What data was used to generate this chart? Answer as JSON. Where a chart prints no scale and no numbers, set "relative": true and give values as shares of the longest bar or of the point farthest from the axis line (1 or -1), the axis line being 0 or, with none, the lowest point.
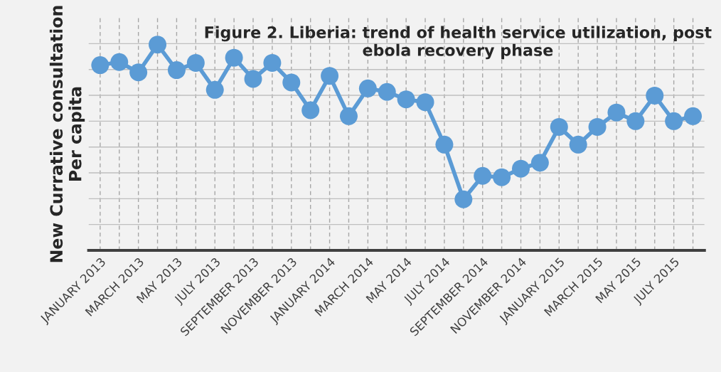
{
  "chart_data": {
    "type": "line",
    "title": "Figure 2. Liberia: trend of health service utilization, post ebola recovery phase",
    "ylabel": "New Currative consultation Per capita",
    "relative": true,
    "grid": true,
    "marker": "circle",
    "line_style": "solid",
    "legend": false,
    "categories": [
      "JANUARY 2013",
      null,
      "MARCH 2013",
      null,
      "MAY 2013",
      null,
      "JULY 2013",
      null,
      "SEPTEMBER 2013",
      null,
      "NOVEMBER 2013",
      null,
      "JANUARY 2014",
      null,
      "MARCH 2014",
      null,
      "MAY 2014",
      null,
      "JULY 2014",
      null,
      "SEPTEMBER 2014",
      null,
      "NOVEMBER 2014",
      null,
      "JANUARY 2015",
      null,
      "MARCH 2015",
      null,
      "MAY 2015",
      null,
      "JULY 2015",
      null
    ],
    "series": [
      {
        "color": "#5b9bd5",
        "values": [
          0.9,
          0.915,
          0.865,
          1,
          0.876,
          0.911,
          0.78,
          0.936,
          0.833,
          0.911,
          0.816,
          0.681,
          0.848,
          0.652,
          0.787,
          0.77,
          0.734,
          0.72,
          0.514,
          0.248,
          0.362,
          0.355,
          0.397,
          0.426,
          0.6,
          0.514,
          0.6,
          0.67,
          0.628,
          0.752,
          0.628,
          0.652
        ]
      }
    ]
  }
}
